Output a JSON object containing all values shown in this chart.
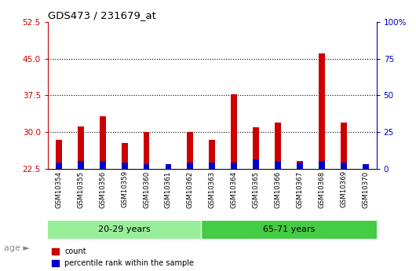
{
  "title": "GDS473 / 231679_at",
  "samples": [
    "GSM10354",
    "GSM10355",
    "GSM10356",
    "GSM10359",
    "GSM10360",
    "GSM10361",
    "GSM10362",
    "GSM10363",
    "GSM10364",
    "GSM10365",
    "GSM10366",
    "GSM10367",
    "GSM10368",
    "GSM10369",
    "GSM10370"
  ],
  "count_values": [
    28.5,
    31.2,
    33.2,
    27.8,
    30.0,
    23.2,
    30.1,
    28.5,
    37.8,
    31.1,
    32.0,
    24.2,
    46.0,
    32.0,
    22.5
  ],
  "percentile_values": [
    4.5,
    5.5,
    5.5,
    4.5,
    3.5,
    3.5,
    4.5,
    4.5,
    4.5,
    6.5,
    5.5,
    4.5,
    5.5,
    4.5,
    3.5
  ],
  "group1_label": "20-29 years",
  "group1_count": 7,
  "group2_label": "65-71 years",
  "group2_count": 8,
  "age_label": "age",
  "left_ylim": [
    22.5,
    52.5
  ],
  "left_yticks": [
    22.5,
    30.0,
    37.5,
    45.0,
    52.5
  ],
  "right_ylim": [
    0,
    100
  ],
  "right_yticks": [
    0,
    25,
    50,
    75,
    100
  ],
  "right_yticklabels": [
    "0",
    "25",
    "50",
    "75",
    "100%"
  ],
  "count_color": "#cc0000",
  "percentile_color": "#0000cc",
  "group1_bg": "#99ee99",
  "group2_bg": "#44cc44",
  "xticklabel_bg": "#d0d0d0",
  "plot_bg": "#ffffff",
  "legend_count": "count",
  "legend_percentile": "percentile rank within the sample",
  "grid_color": "black",
  "bar_width": 0.28
}
